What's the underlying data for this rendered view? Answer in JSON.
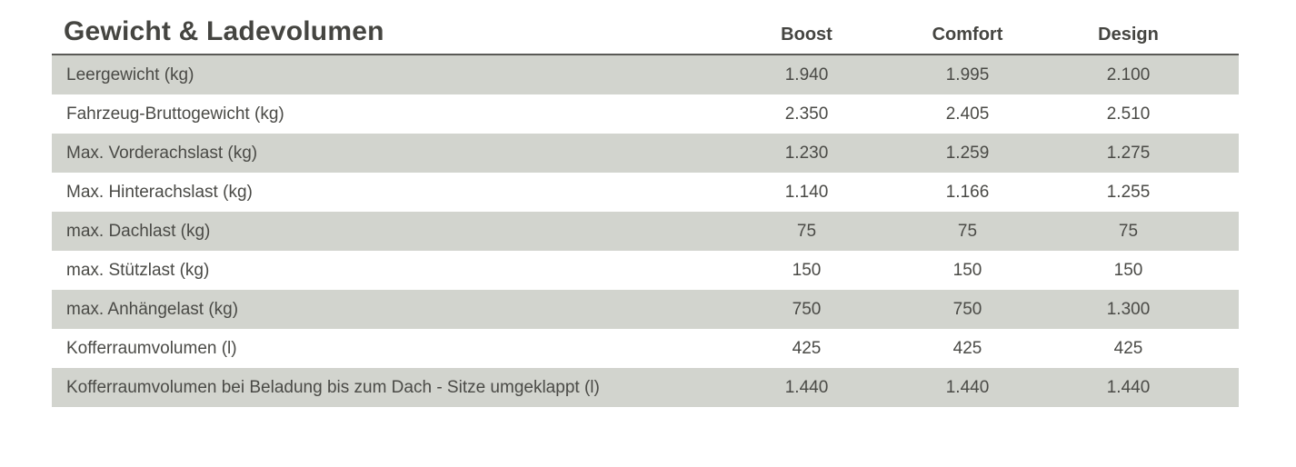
{
  "chart_data": {
    "type": "table",
    "title": "Gewicht & Ladevolumen",
    "columns": [
      "Boost",
      "Comfort",
      "Design"
    ],
    "rows": [
      {
        "label": "Leergewicht (kg)",
        "values": [
          "1.940",
          "1.995",
          "2.100"
        ]
      },
      {
        "label": "Fahrzeug-Bruttogewicht (kg)",
        "values": [
          "2.350",
          "2.405",
          "2.510"
        ]
      },
      {
        "label": "Max. Vorderachslast (kg)",
        "values": [
          "1.230",
          "1.259",
          "1.275"
        ]
      },
      {
        "label": "Max. Hinterachslast (kg)",
        "values": [
          "1.140",
          "1.166",
          "1.255"
        ]
      },
      {
        "label": "max. Dachlast (kg)",
        "values": [
          "75",
          "75",
          "75"
        ]
      },
      {
        "label": "max. Stützlast (kg)",
        "values": [
          "150",
          "150",
          "150"
        ]
      },
      {
        "label": "max. Anhängelast (kg)",
        "values": [
          "750",
          "750",
          "1.300"
        ]
      },
      {
        "label": "Kofferraumvolumen (l)",
        "values": [
          "425",
          "425",
          "425"
        ]
      },
      {
        "label": "Kofferraumvolumen bei Beladung bis zum Dach - Sitze umgeklappt (l)",
        "values": [
          "1.440",
          "1.440",
          "1.440"
        ]
      }
    ],
    "layout": {
      "stripe_pattern": "first-row-shaded-alternating",
      "value_alignment": "center"
    }
  },
  "colors": {
    "stripe_bg": "#d2d4ce",
    "header_rule": "#5a5a56",
    "text": "#4a4a46",
    "title_text": "#454541",
    "page_bg": "#ffffff"
  }
}
